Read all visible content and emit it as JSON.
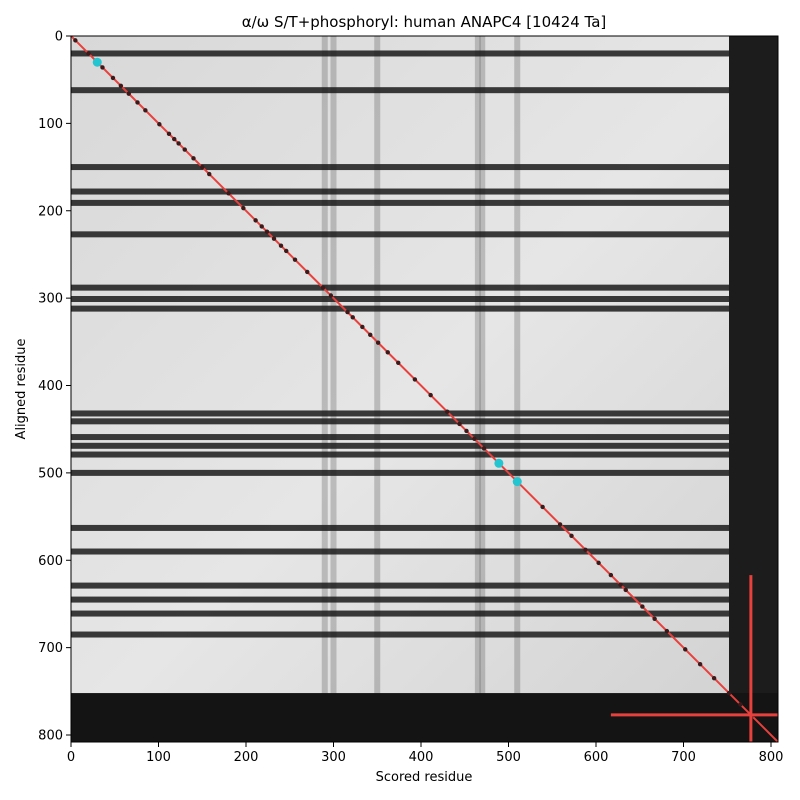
{
  "chart_data": {
    "type": "heatmap",
    "title": "α/ω S/T+phosphoryl: human ANAPC4 [10424 Ta]",
    "xlabel": "Scored residue",
    "ylabel": "Aligned residue",
    "xlim": [
      0,
      808
    ],
    "ylim": [
      808,
      0
    ],
    "x_ticks": [
      0,
      100,
      200,
      300,
      400,
      500,
      600,
      700,
      800
    ],
    "y_ticks": [
      0,
      100,
      200,
      300,
      400,
      500,
      600,
      700,
      800
    ],
    "colormap": "grayscale",
    "diagonal_line": {
      "from": [
        0,
        0
      ],
      "to": [
        808,
        808
      ],
      "color": "#e8403c"
    },
    "highlight_points": [
      {
        "x": 30,
        "y": 30
      },
      {
        "x": 489,
        "y": 489
      },
      {
        "x": 510,
        "y": 510
      }
    ],
    "highlight_color": "#22c5d0",
    "diagonal_dots": [
      5,
      20,
      36,
      48,
      57,
      66,
      76,
      85,
      101,
      112,
      118,
      123,
      130,
      140,
      150,
      158,
      180,
      197,
      211,
      218,
      224,
      232,
      240,
      246,
      256,
      270,
      288,
      297,
      316,
      322,
      333,
      342,
      351,
      362,
      374,
      393,
      411,
      430,
      444,
      452,
      461,
      472,
      539,
      559,
      572,
      588,
      603,
      617,
      628,
      634,
      653,
      667,
      681,
      702,
      719,
      735,
      752,
      765,
      778
    ],
    "crosshair": {
      "x": 777,
      "y": 777,
      "h_start": 617,
      "v_start": 617,
      "color": "#e8403c"
    },
    "dark_rows": [
      20,
      62,
      150,
      178,
      191,
      227,
      288,
      301,
      312,
      432,
      441,
      459,
      469,
      479,
      500,
      563,
      590,
      629,
      645,
      661,
      685
    ],
    "dark_cols": [
      290,
      300,
      350,
      465,
      470,
      510
    ],
    "dark_region_start": 752
  }
}
